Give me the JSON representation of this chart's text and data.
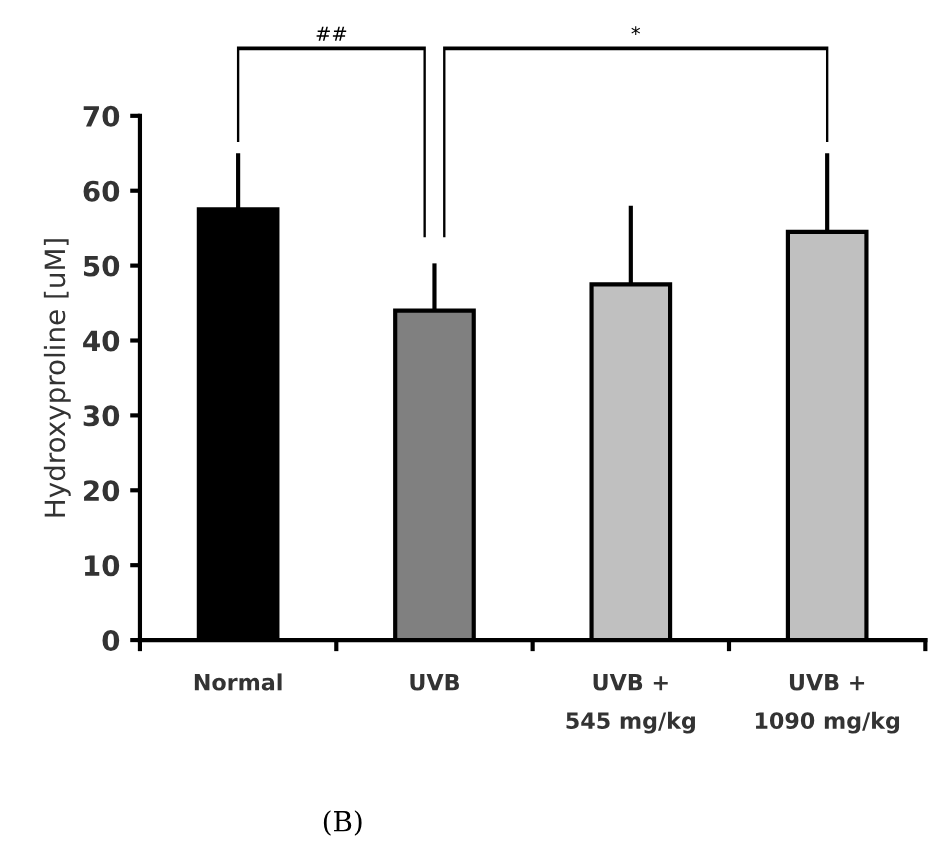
{
  "chart_data": {
    "type": "bar",
    "ylabel": "Hydroxyproline [uM]",
    "categories": [
      "Normal",
      "UVB",
      "UVB +\n545 mg/kg",
      "UVB +\n1090 mg/kg"
    ],
    "values": [
      57.5,
      44,
      47.5,
      54.5
    ],
    "colors": [
      "#000000",
      "#808080",
      "#c0c0c0",
      "#c0c0c0"
    ],
    "errors": [
      [
        57.5,
        65
      ],
      [
        44,
        50.3
      ],
      [
        47.5,
        58
      ],
      [
        54.5,
        65
      ]
    ],
    "ylim": [
      0,
      70
    ],
    "yticks": [
      0,
      10,
      20,
      30,
      40,
      50,
      60,
      70
    ],
    "grid": false,
    "legend": false,
    "annotations": [
      "##",
      "*",
      "(B)"
    ]
  }
}
